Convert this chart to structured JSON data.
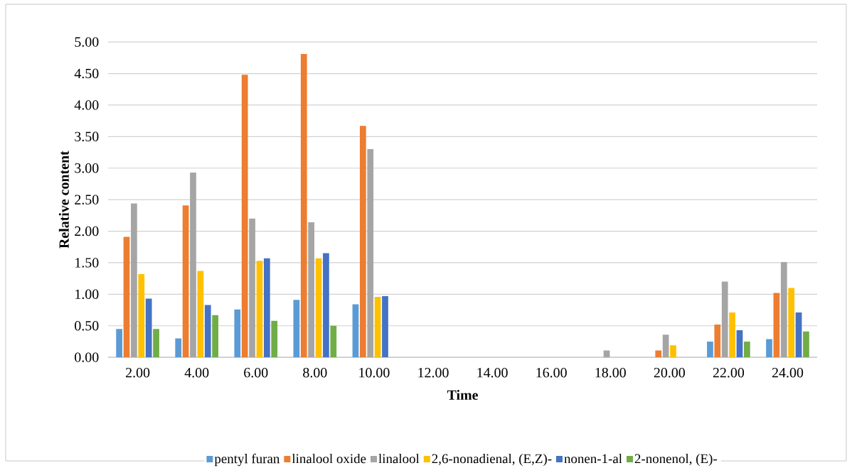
{
  "chart_data": {
    "type": "bar",
    "xlabel": "Time",
    "ylabel": "Relative content",
    "categories": [
      "2.00",
      "4.00",
      "6.00",
      "8.00",
      "10.00",
      "12.00",
      "14.00",
      "16.00",
      "18.00",
      "20.00",
      "22.00",
      "24.00"
    ],
    "series": [
      {
        "name": "pentyl furan",
        "color": "#5b9bd5",
        "values": [
          0.45,
          0.3,
          0.76,
          0.91,
          0.84,
          0,
          0,
          0,
          0,
          0,
          0.25,
          0.29
        ]
      },
      {
        "name": "linalool oxide",
        "color": "#ed7d31",
        "values": [
          1.91,
          2.41,
          4.48,
          4.81,
          3.67,
          0,
          0,
          0,
          0,
          0.11,
          0.52,
          1.02
        ]
      },
      {
        "name": "linalool",
        "color": "#a5a5a5",
        "values": [
          2.44,
          2.93,
          2.2,
          2.14,
          3.3,
          0,
          0,
          0,
          0.11,
          0.36,
          1.2,
          1.51
        ]
      },
      {
        "name": "2,6-nonadienal, (E,Z)-",
        "color": "#ffc000",
        "values": [
          1.32,
          1.37,
          1.53,
          1.57,
          0.96,
          0,
          0,
          0,
          0,
          0.19,
          0.71,
          1.1
        ]
      },
      {
        "name": "nonen-1-al",
        "color": "#4472c4",
        "values": [
          0.93,
          0.83,
          1.57,
          1.65,
          0.97,
          0,
          0,
          0,
          0,
          0,
          0.43,
          0.71
        ]
      },
      {
        "name": "2-nonenol, (E)-",
        "color": "#70ad47",
        "values": [
          0.45,
          0.67,
          0.58,
          0.5,
          0,
          0,
          0,
          0,
          0,
          0,
          0.25,
          0.41
        ]
      }
    ],
    "ylim": [
      0,
      5
    ],
    "yticks": [
      {
        "value": 0,
        "label": "0.00"
      },
      {
        "value": 0.5,
        "label": "0.50"
      },
      {
        "value": 1,
        "label": "1.00"
      },
      {
        "value": 1.5,
        "label": "1.50"
      },
      {
        "value": 2,
        "label": "2.00"
      },
      {
        "value": 2.5,
        "label": "2.50"
      },
      {
        "value": 3,
        "label": "3.00"
      },
      {
        "value": 3.5,
        "label": "3.50"
      },
      {
        "value": 4,
        "label": "4.00"
      },
      {
        "value": 4.5,
        "label": "4.50"
      },
      {
        "value": 5,
        "label": "5.00"
      }
    ],
    "grid": "y",
    "legend": "bottom"
  }
}
